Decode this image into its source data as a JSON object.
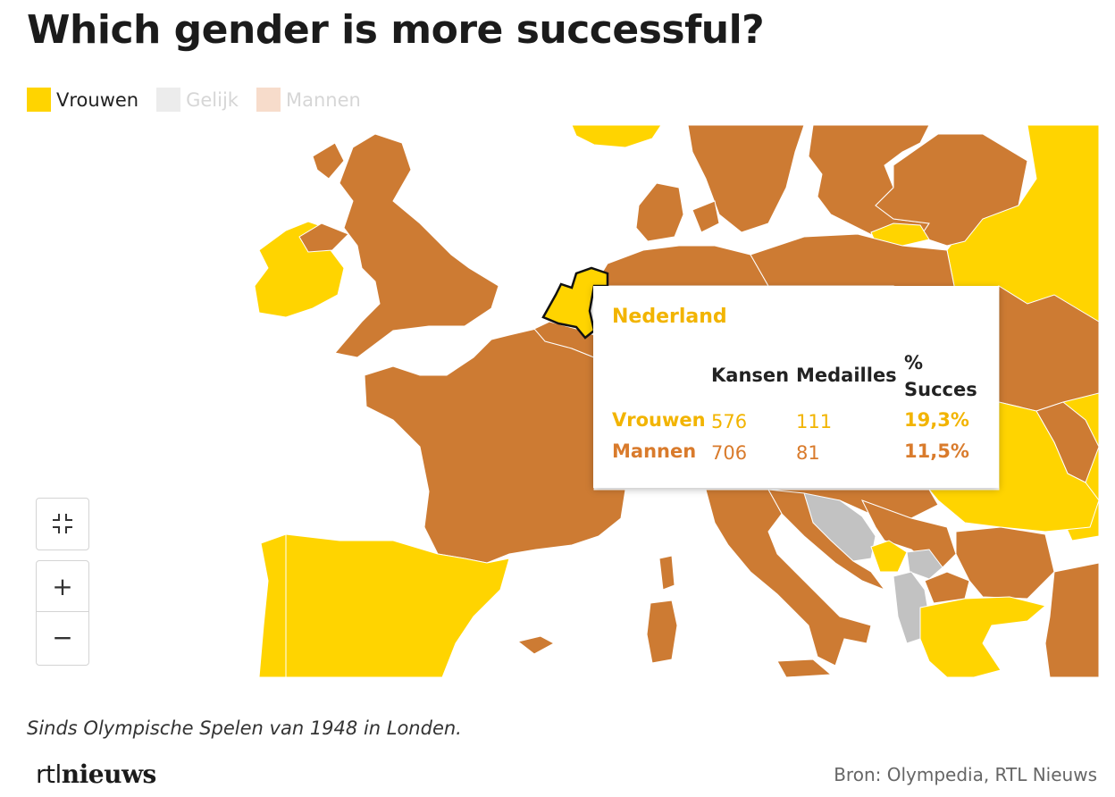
{
  "title": "Which gender is more successful?",
  "legend": [
    {
      "label": "Vrouwen",
      "color": "#ffd400",
      "active": true
    },
    {
      "label": "Gelijk",
      "color": "#ececec",
      "active": false
    },
    {
      "label": "Mannen",
      "color": "#f7dccb",
      "active": false
    }
  ],
  "colors": {
    "vrouwen": "#ffd400",
    "mannen": "#cd7b33",
    "gelijk": "#c2c2c2",
    "sea": "#ffffff",
    "tooltip_women": "#f2b400",
    "tooltip_men": "#d97b2c"
  },
  "tooltip": {
    "country": "Nederland",
    "headers": {
      "kansen": "Kansen",
      "medailles": "Medailles",
      "succes_line1": "%",
      "succes_line2": "Succes"
    },
    "rows": [
      {
        "label": "Vrouwen",
        "kansen": "576",
        "medailles": "111",
        "succes": "19,3%"
      },
      {
        "label": "Mannen",
        "kansen": "706",
        "medailles": "81",
        "succes": "11,5%"
      }
    ]
  },
  "controls": {
    "collapse_icon": "collapse-icon",
    "zoom_in": "+",
    "zoom_out": "−"
  },
  "caption": "Sinds Olympische Spelen van 1948 in Londen.",
  "logo": {
    "part1": "rtl",
    "part2": "nieuws"
  },
  "source": "Bron: Olympedia, RTL Nieuws"
}
